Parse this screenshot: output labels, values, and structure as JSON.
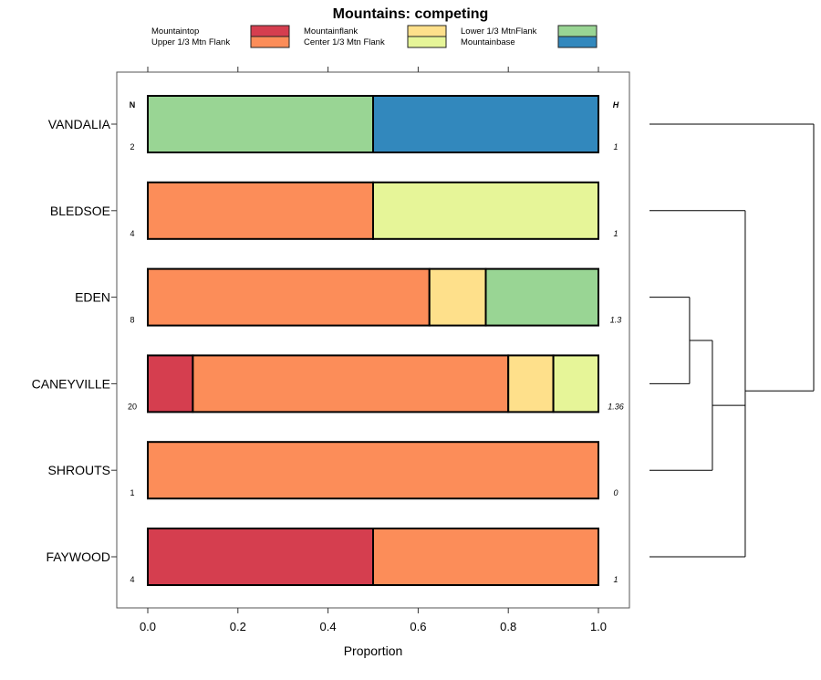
{
  "chart_data": {
    "type": "bar",
    "orientation": "horizontal-stacked",
    "title": "Mountains: competing",
    "xlabel": "Proportion",
    "xlim": [
      0,
      1
    ],
    "xticks": [
      "0.0",
      "0.2",
      "0.4",
      "0.6",
      "0.8",
      "1.0"
    ],
    "xtick_values": [
      0,
      0.2,
      0.4,
      0.6,
      0.8,
      1.0
    ],
    "n_header": "N",
    "h_header": "H",
    "legend": [
      {
        "name": "Mountaintop",
        "color": "#d53e4f"
      },
      {
        "name": "Upper 1/3 Mtn Flank",
        "color": "#fc8d59"
      },
      {
        "name": "Mountainflank",
        "color": "#fee08b"
      },
      {
        "name": "Center 1/3 Mtn Flank",
        "color": "#e6f598"
      },
      {
        "name": "Lower 1/3 MtnFlank",
        "color": "#99d594"
      },
      {
        "name": "Mountainbase",
        "color": "#3288bd"
      }
    ],
    "categories": [
      "VANDALIA",
      "BLEDSOE",
      "EDEN",
      "CANEYVILLE",
      "SHROUTS",
      "FAYWOOD"
    ],
    "n": [
      "2",
      "4",
      "8",
      "20",
      "1",
      "4"
    ],
    "h": [
      "1",
      "1",
      "1.3",
      "1.36",
      "0",
      "1"
    ],
    "series": [
      {
        "name": "Mountaintop",
        "values": [
          0,
          0,
          0,
          0.1,
          0,
          0.5
        ]
      },
      {
        "name": "Upper 1/3 Mtn Flank",
        "values": [
          0,
          0.5,
          0.625,
          0.7,
          1,
          0.5
        ]
      },
      {
        "name": "Mountainflank",
        "values": [
          0,
          0,
          0.125,
          0.1,
          0,
          0
        ]
      },
      {
        "name": "Center 1/3 Mtn Flank",
        "values": [
          0,
          0.5,
          0,
          0.1,
          0,
          0
        ]
      },
      {
        "name": "Lower 1/3 MtnFlank",
        "values": [
          0.5,
          0,
          0.25,
          0,
          0,
          0
        ]
      },
      {
        "name": "Mountainbase",
        "values": [
          0.5,
          0,
          0,
          0,
          0,
          0
        ]
      }
    ],
    "dendrogram": {
      "merges": [
        {
          "members": [
            "EDEN",
            "CANEYVILLE"
          ],
          "height": 0.244
        },
        {
          "members": [
            "EDEN+CANEYVILLE",
            "SHROUTS"
          ],
          "height": 0.383
        },
        {
          "members": [
            "BLEDSOE",
            "EDEN+CANEYVILLE+SHROUTS",
            "FAYWOOD"
          ],
          "height": 0.583
        },
        {
          "members": [
            "VANDALIA",
            "rest"
          ],
          "height": 1.0
        }
      ]
    }
  }
}
